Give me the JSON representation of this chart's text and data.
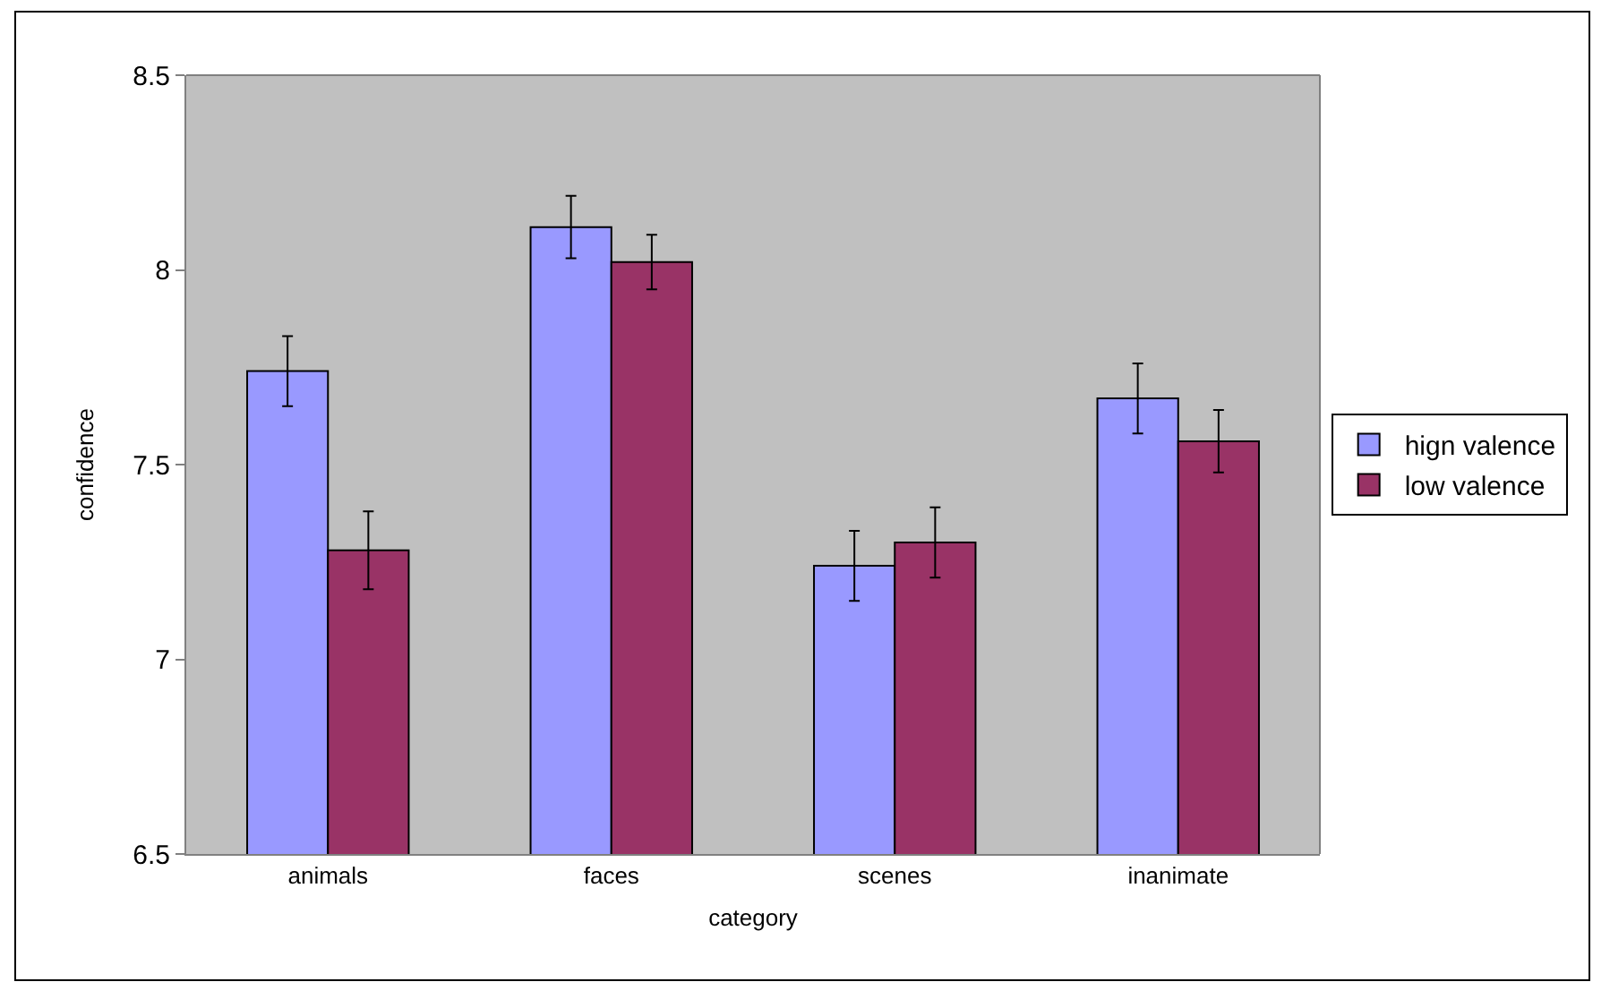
{
  "chart_data": {
    "type": "bar",
    "xlabel": "category",
    "ylabel": "confidence",
    "categories": [
      "animals",
      "faces",
      "scenes",
      "inanimate"
    ],
    "series": [
      {
        "name": "hign valence",
        "color": "#9999ff",
        "values": [
          7.74,
          8.11,
          7.24,
          7.67
        ],
        "errors": [
          0.09,
          0.08,
          0.09,
          0.09
        ]
      },
      {
        "name": "low valence",
        "color": "#993366",
        "values": [
          7.28,
          8.02,
          7.3,
          7.56
        ],
        "errors": [
          0.1,
          0.07,
          0.09,
          0.08
        ]
      }
    ],
    "ylim": [
      6.5,
      8.5
    ],
    "yticks": [
      6.5,
      7,
      7.5,
      8,
      8.5
    ],
    "grid": false,
    "legend": "right"
  }
}
